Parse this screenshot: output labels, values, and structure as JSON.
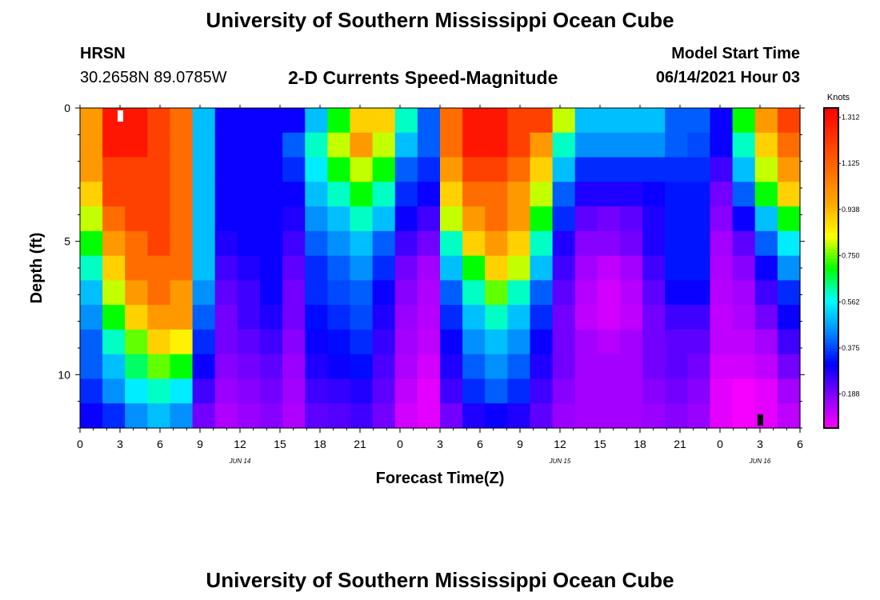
{
  "page": {
    "title_top": "University of Southern Mississippi Ocean Cube",
    "title_bottom": "University of Southern Mississippi Ocean Cube",
    "station": "HRSN",
    "coords": "30.2658N  89.0785W",
    "subtitle": "2-D Currents Speed-Magnitude",
    "model_label": "Model Start Time",
    "model_time": "06/14/2021 Hour 03"
  },
  "chart_data": {
    "type": "heatmap",
    "title": "2-D Currents Speed-Magnitude",
    "xlabel": "Forecast Time(Z)",
    "ylabel": "Depth (ft)",
    "xlim": [
      0,
      54
    ],
    "ylim": [
      0,
      12
    ],
    "x_ticks": [
      0,
      3,
      6,
      9,
      12,
      15,
      18,
      21,
      24,
      27,
      30,
      33,
      36,
      39,
      42,
      45,
      48,
      51,
      54
    ],
    "x_tick_labels": [
      "0",
      "3",
      "6",
      "9",
      "12",
      "15",
      "18",
      "21",
      "0",
      "3",
      "6",
      "9",
      "12",
      "15",
      "18",
      "21",
      "0",
      "3",
      "6"
    ],
    "y_ticks": [
      0,
      5,
      10
    ],
    "y_tick_labels": [
      "0",
      "5",
      "10"
    ],
    "date_labels": [
      {
        "x": 12,
        "text": "JUN 14"
      },
      {
        "x": 36,
        "text": "JUN 15"
      },
      {
        "x": 51,
        "text": "JUN 16"
      }
    ],
    "colorbar": {
      "label": "Knots",
      "min": 0.05,
      "max": 1.35,
      "ticks": [
        0.188,
        0.375,
        0.562,
        0.75,
        0.938,
        1.125,
        1.312
      ],
      "tick_labels": [
        "0.188",
        "0.375",
        "0.562",
        "0.750",
        "0.938",
        "1.125",
        "1.312"
      ]
    },
    "markers": [
      {
        "x": 3,
        "depth": 0.3,
        "color": "#ffffff"
      },
      {
        "x": 51,
        "depth": 11.7,
        "color": "#000000"
      }
    ],
    "depth_rows": [
      0,
      1,
      2,
      3,
      4,
      5,
      6,
      7,
      8,
      9,
      10,
      11,
      12
    ],
    "speed_knots": [
      [
        1.0,
        1.3,
        1.3,
        1.2,
        1.1,
        0.5,
        0.3,
        0.3,
        0.3,
        0.3,
        0.5,
        0.7,
        0.9,
        0.9,
        0.6,
        0.4,
        1.1,
        1.3,
        1.3,
        1.2,
        1.2,
        0.8,
        0.5,
        0.5,
        0.5,
        0.5,
        0.4,
        0.4,
        0.3,
        0.7,
        1.0,
        1.2
      ],
      [
        1.0,
        1.3,
        1.3,
        1.2,
        1.1,
        0.5,
        0.3,
        0.3,
        0.3,
        0.4,
        0.6,
        0.8,
        1.0,
        0.8,
        0.5,
        0.4,
        1.1,
        1.3,
        1.3,
        1.2,
        1.0,
        0.6,
        0.45,
        0.45,
        0.45,
        0.45,
        0.4,
        0.38,
        0.3,
        0.6,
        0.9,
        1.1
      ],
      [
        1.0,
        1.2,
        1.2,
        1.2,
        1.1,
        0.5,
        0.3,
        0.3,
        0.3,
        0.35,
        0.55,
        0.7,
        0.8,
        0.7,
        0.4,
        0.35,
        1.0,
        1.2,
        1.2,
        1.1,
        0.9,
        0.5,
        0.35,
        0.35,
        0.35,
        0.35,
        0.35,
        0.35,
        0.25,
        0.5,
        0.8,
        1.0
      ],
      [
        0.9,
        1.2,
        1.2,
        1.2,
        1.1,
        0.5,
        0.3,
        0.3,
        0.3,
        0.3,
        0.5,
        0.6,
        0.7,
        0.6,
        0.35,
        0.3,
        0.9,
        1.1,
        1.1,
        1.0,
        0.8,
        0.4,
        0.28,
        0.28,
        0.28,
        0.3,
        0.33,
        0.33,
        0.2,
        0.4,
        0.7,
        0.9
      ],
      [
        0.8,
        1.1,
        1.2,
        1.2,
        1.1,
        0.5,
        0.3,
        0.3,
        0.3,
        0.28,
        0.45,
        0.5,
        0.6,
        0.5,
        0.3,
        0.25,
        0.8,
        1.0,
        1.1,
        1.0,
        0.7,
        0.35,
        0.22,
        0.2,
        0.22,
        0.28,
        0.33,
        0.33,
        0.18,
        0.3,
        0.5,
        0.7
      ],
      [
        0.7,
        1.0,
        1.1,
        1.2,
        1.1,
        0.5,
        0.28,
        0.3,
        0.3,
        0.25,
        0.4,
        0.45,
        0.5,
        0.4,
        0.25,
        0.2,
        0.6,
        0.9,
        1.0,
        0.9,
        0.6,
        0.28,
        0.18,
        0.18,
        0.2,
        0.28,
        0.33,
        0.33,
        0.15,
        0.22,
        0.4,
        0.55
      ],
      [
        0.6,
        0.9,
        1.1,
        1.1,
        1.1,
        0.5,
        0.25,
        0.28,
        0.3,
        0.22,
        0.35,
        0.4,
        0.45,
        0.35,
        0.2,
        0.15,
        0.5,
        0.7,
        0.9,
        0.8,
        0.5,
        0.25,
        0.15,
        0.12,
        0.15,
        0.25,
        0.33,
        0.33,
        0.14,
        0.18,
        0.3,
        0.45
      ],
      [
        0.5,
        0.8,
        1.0,
        1.1,
        1.0,
        0.45,
        0.22,
        0.25,
        0.3,
        0.2,
        0.35,
        0.38,
        0.4,
        0.3,
        0.18,
        0.14,
        0.4,
        0.6,
        0.75,
        0.6,
        0.4,
        0.22,
        0.13,
        0.1,
        0.13,
        0.22,
        0.3,
        0.3,
        0.13,
        0.15,
        0.25,
        0.35
      ],
      [
        0.45,
        0.7,
        0.9,
        1.0,
        1.0,
        0.4,
        0.2,
        0.25,
        0.28,
        0.2,
        0.32,
        0.35,
        0.38,
        0.28,
        0.16,
        0.13,
        0.35,
        0.5,
        0.6,
        0.5,
        0.35,
        0.2,
        0.12,
        0.1,
        0.12,
        0.2,
        0.25,
        0.25,
        0.12,
        0.14,
        0.2,
        0.3
      ],
      [
        0.4,
        0.6,
        0.75,
        0.9,
        0.85,
        0.35,
        0.2,
        0.22,
        0.25,
        0.18,
        0.3,
        0.32,
        0.35,
        0.26,
        0.15,
        0.12,
        0.3,
        0.45,
        0.5,
        0.45,
        0.3,
        0.2,
        0.15,
        0.13,
        0.15,
        0.2,
        0.22,
        0.22,
        0.12,
        0.12,
        0.15,
        0.25
      ],
      [
        0.4,
        0.5,
        0.65,
        0.75,
        0.7,
        0.3,
        0.18,
        0.2,
        0.22,
        0.16,
        0.28,
        0.3,
        0.32,
        0.24,
        0.14,
        0.1,
        0.28,
        0.4,
        0.45,
        0.4,
        0.28,
        0.2,
        0.15,
        0.15,
        0.15,
        0.2,
        0.22,
        0.2,
        0.1,
        0.1,
        0.12,
        0.2
      ],
      [
        0.35,
        0.45,
        0.55,
        0.6,
        0.55,
        0.25,
        0.16,
        0.18,
        0.2,
        0.15,
        0.25,
        0.26,
        0.28,
        0.22,
        0.12,
        0.08,
        0.25,
        0.35,
        0.4,
        0.35,
        0.25,
        0.18,
        0.15,
        0.15,
        0.15,
        0.18,
        0.2,
        0.18,
        0.08,
        0.06,
        0.08,
        0.15
      ],
      [
        0.3,
        0.35,
        0.45,
        0.5,
        0.45,
        0.2,
        0.14,
        0.16,
        0.18,
        0.14,
        0.22,
        0.23,
        0.25,
        0.2,
        0.1,
        0.08,
        0.2,
        0.28,
        0.3,
        0.28,
        0.22,
        0.16,
        0.15,
        0.15,
        0.15,
        0.16,
        0.18,
        0.16,
        0.08,
        0.06,
        0.08,
        0.12
      ]
    ]
  }
}
